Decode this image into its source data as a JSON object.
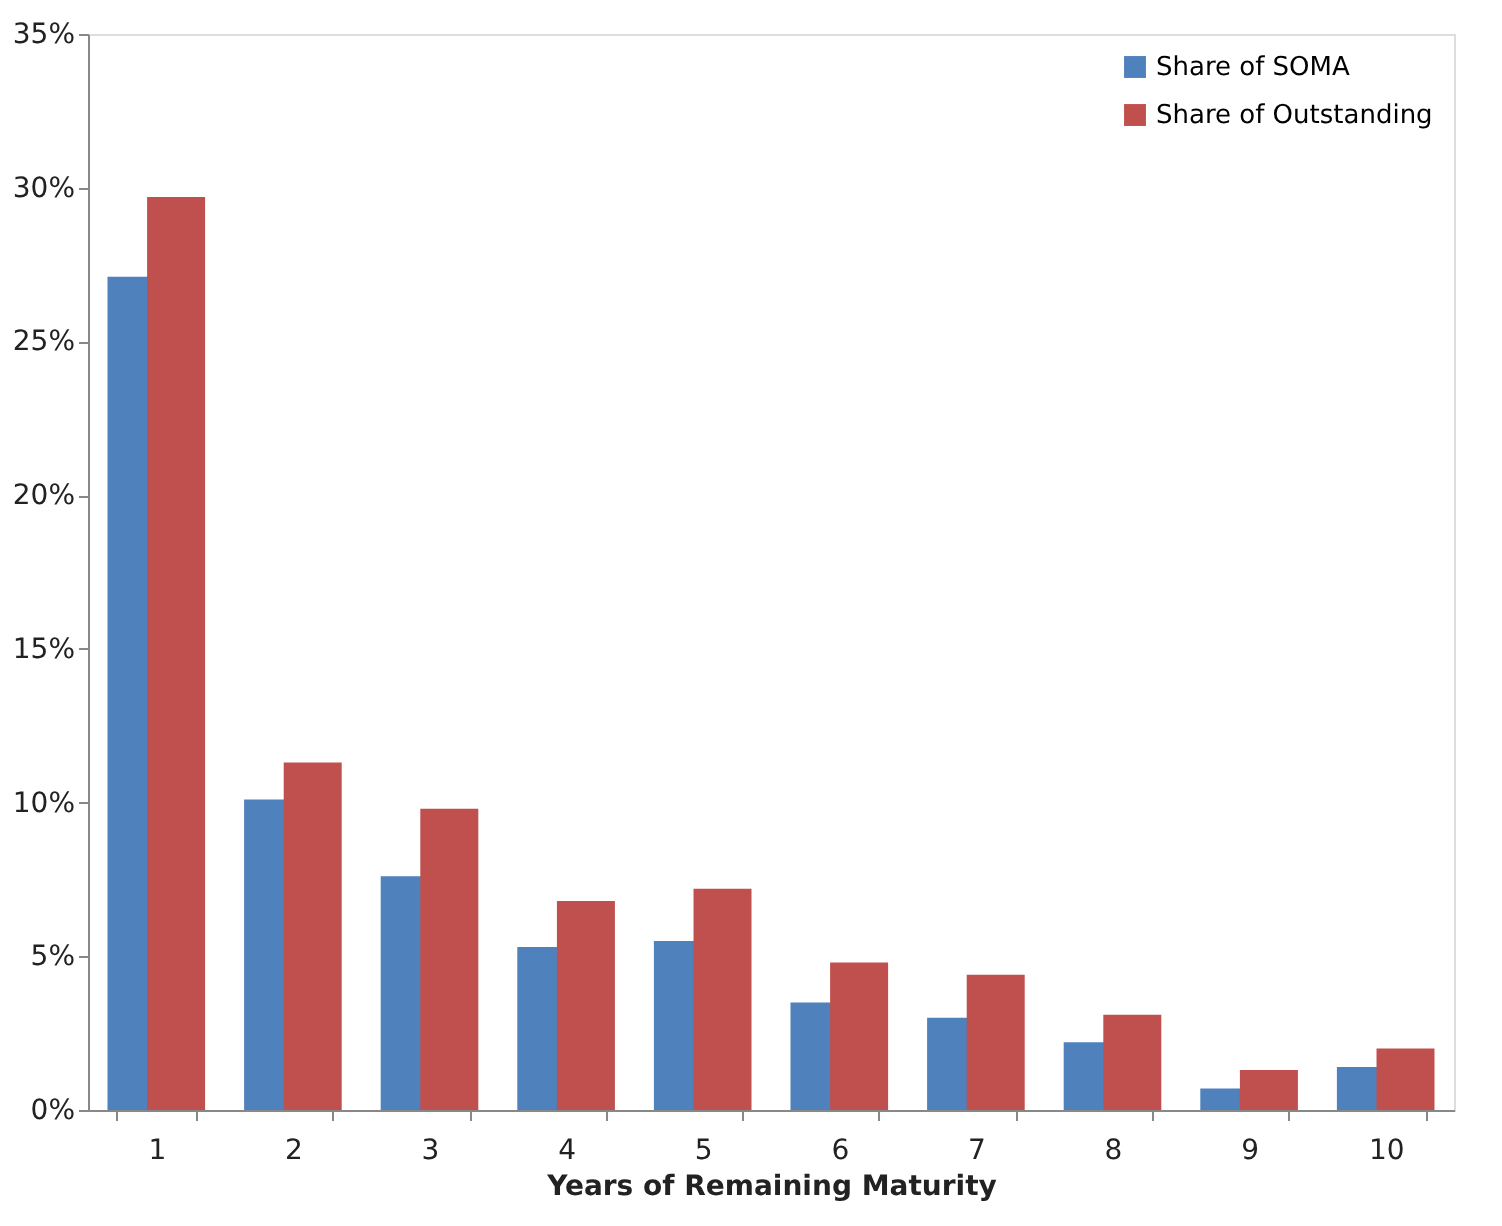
{
  "chart_data": {
    "type": "bar",
    "xlabel": "Years of Remaining Maturity",
    "categories": [
      "1",
      "2",
      "3",
      "4",
      "5",
      "6",
      "7",
      "8",
      "9",
      "10"
    ],
    "series": [
      {
        "name": "Share of SOMA",
        "color": "#4f81bd",
        "values": [
          27.1,
          10.1,
          7.6,
          5.3,
          5.5,
          3.5,
          3.0,
          2.2,
          0.7,
          1.4
        ]
      },
      {
        "name": "Share of Outstanding",
        "color": "#c0504d",
        "values": [
          29.7,
          11.3,
          9.8,
          6.8,
          7.2,
          4.8,
          4.4,
          3.1,
          1.3,
          2.0
        ]
      }
    ],
    "ylim": [
      0,
      35
    ],
    "yticks": [
      {
        "value": 0,
        "label": "0%"
      },
      {
        "value": 5,
        "label": "5%"
      },
      {
        "value": 10,
        "label": "10%"
      },
      {
        "value": 15,
        "label": "15%"
      },
      {
        "value": 20,
        "label": "20%"
      },
      {
        "value": 25,
        "label": "25%"
      },
      {
        "value": 30,
        "label": "30%"
      },
      {
        "value": 35,
        "label": "35%"
      }
    ],
    "grid": false,
    "legend": "top right"
  }
}
